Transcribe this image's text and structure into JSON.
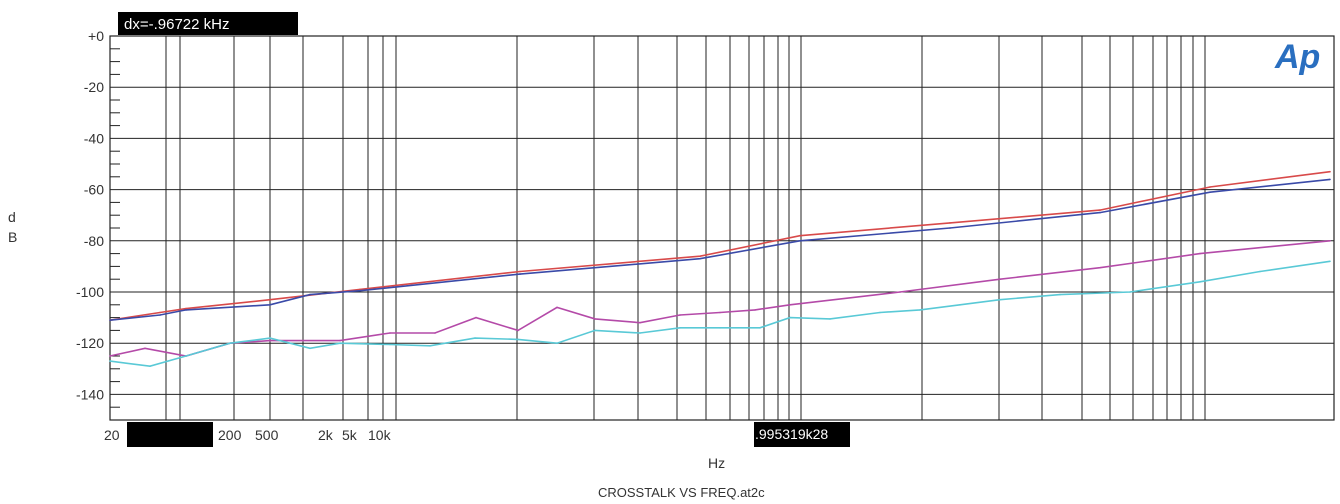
{
  "chart_data": {
    "type": "line",
    "title": "CROSSTALK VS FREQ.at2c",
    "xlabel": "Hz",
    "ylabel": "d B",
    "ylabel_line1": "d",
    "ylabel_line2": "B",
    "ylim": [
      -150,
      0
    ],
    "x_scale": "log",
    "grid": true,
    "yticks": [
      "+0",
      "-20",
      "-40",
      "-60",
      "-80",
      "-100",
      "-120",
      "-140"
    ],
    "xticks": [
      "20",
      "200",
      "500",
      "2k",
      "5k",
      "10k"
    ],
    "cursor_readout": "dx=-.96722 kHz",
    "cursor_value_label": ".995319k28",
    "logo": "Ap",
    "colors": {
      "red": "#d84a4a",
      "blue": "#3a4aa8",
      "magenta": "#b44aa8",
      "cyan": "#59c9d6"
    },
    "series": [
      {
        "color": "#d84a4a",
        "points": [
          [
            110,
            -111
          ],
          [
            160,
            -108
          ],
          [
            186,
            -106.5
          ],
          [
            270,
            -103
          ],
          [
            360,
            -99
          ],
          [
            520,
            -92
          ],
          [
            700,
            -86
          ],
          [
            800,
            -78
          ],
          [
            950,
            -73
          ],
          [
            1100,
            -68
          ],
          [
            1210,
            -59
          ],
          [
            1330,
            -53
          ]
        ]
      },
      {
        "color": "#3a4aa8",
        "points": [
          [
            110,
            -111
          ],
          [
            160,
            -109
          ],
          [
            186,
            -107
          ],
          [
            270,
            -105
          ],
          [
            310,
            -101
          ],
          [
            360,
            -99.5
          ],
          [
            520,
            -93
          ],
          [
            700,
            -87
          ],
          [
            800,
            -80
          ],
          [
            950,
            -75
          ],
          [
            1100,
            -69
          ],
          [
            1210,
            -61
          ],
          [
            1330,
            -56
          ]
        ]
      },
      {
        "color": "#b44aa8",
        "points": [
          [
            110,
            -125
          ],
          [
            145,
            -122
          ],
          [
            186,
            -125
          ],
          [
            230,
            -120
          ],
          [
            270,
            -119
          ],
          [
            340,
            -119
          ],
          [
            390,
            -116
          ],
          [
            435,
            -116
          ],
          [
            476,
            -110
          ],
          [
            518,
            -115
          ],
          [
            557,
            -106
          ],
          [
            595,
            -110.5
          ],
          [
            640,
            -112
          ],
          [
            680,
            -109
          ],
          [
            720,
            -108
          ],
          [
            755,
            -107
          ],
          [
            790,
            -105
          ],
          [
            900,
            -100
          ],
          [
            1000,
            -95
          ],
          [
            1100,
            -90.5
          ],
          [
            1200,
            -85
          ],
          [
            1330,
            -80
          ]
        ]
      },
      {
        "color": "#59c9d6",
        "points": [
          [
            110,
            -127
          ],
          [
            150,
            -129
          ],
          [
            186,
            -125
          ],
          [
            230,
            -120
          ],
          [
            270,
            -118
          ],
          [
            310,
            -122
          ],
          [
            340,
            -120
          ],
          [
            390,
            -120.5
          ],
          [
            430,
            -121
          ],
          [
            475,
            -118
          ],
          [
            518,
            -118.5
          ],
          [
            557,
            -120
          ],
          [
            595,
            -115
          ],
          [
            640,
            -116
          ],
          [
            680,
            -114
          ],
          [
            720,
            -114
          ],
          [
            760,
            -114
          ],
          [
            790,
            -110
          ],
          [
            830,
            -110.5
          ],
          [
            880,
            -108
          ],
          [
            920,
            -107
          ],
          [
            960,
            -105
          ],
          [
            1000,
            -103
          ],
          [
            1060,
            -101
          ],
          [
            1130,
            -100
          ],
          [
            1200,
            -96
          ],
          [
            1260,
            -92
          ],
          [
            1330,
            -88
          ]
        ]
      }
    ]
  }
}
